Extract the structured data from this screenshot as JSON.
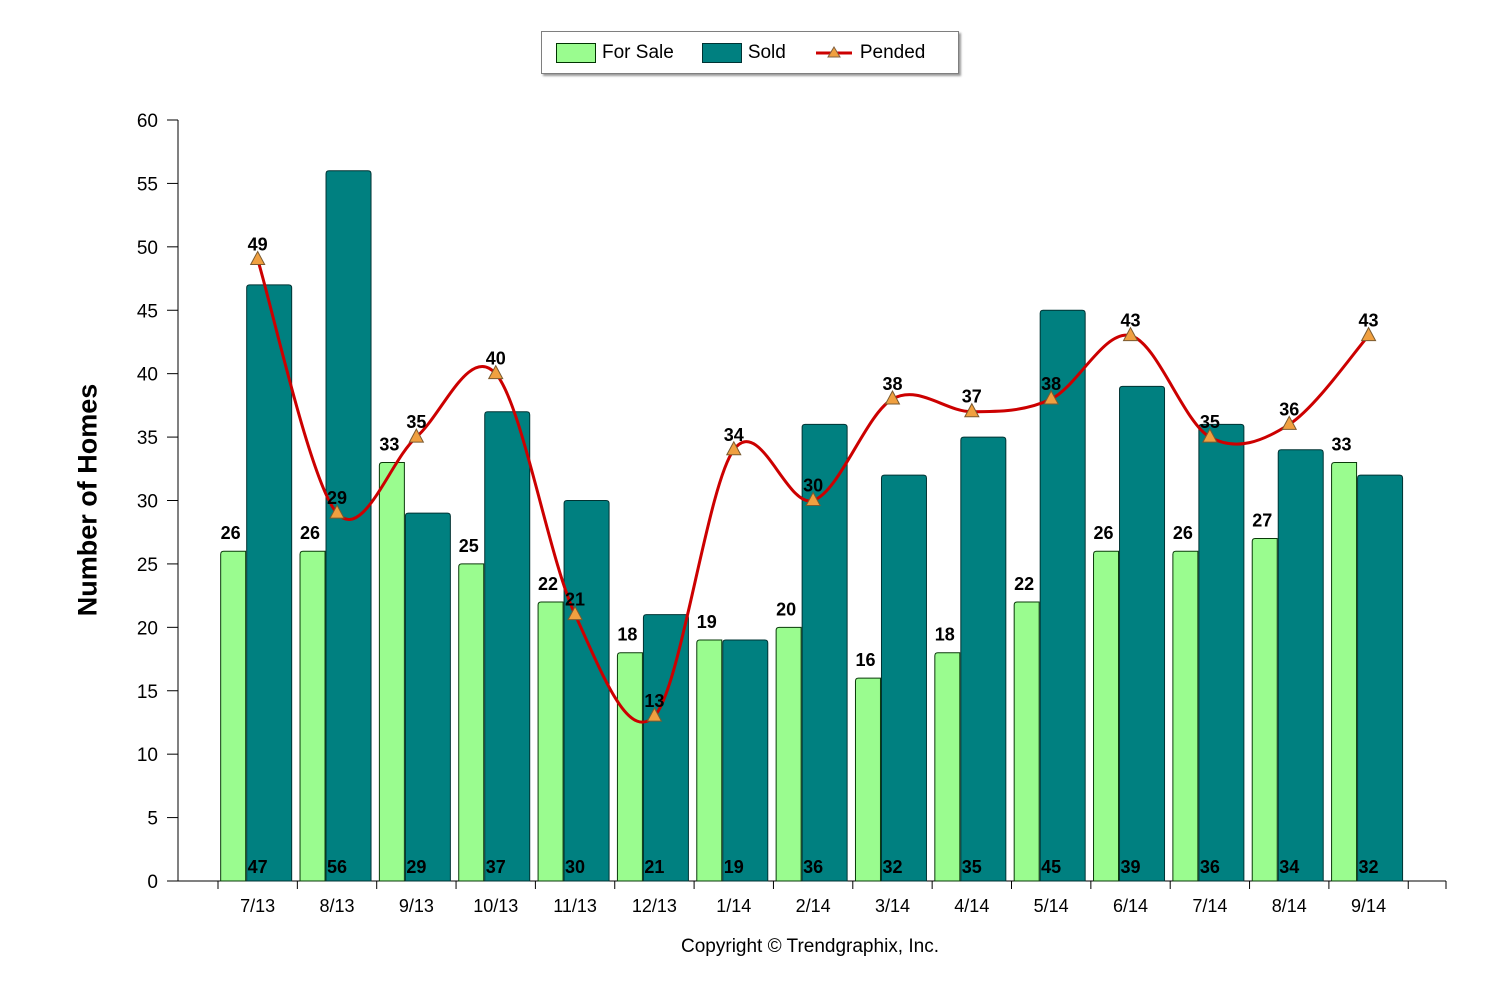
{
  "chart_data": {
    "type": "bar",
    "categories": [
      "7/13",
      "8/13",
      "9/13",
      "10/13",
      "11/13",
      "12/13",
      "1/14",
      "2/14",
      "3/14",
      "4/14",
      "5/14",
      "6/14",
      "7/14",
      "8/14",
      "9/14"
    ],
    "series": [
      {
        "name": "For Sale",
        "type": "bar",
        "values": [
          26,
          26,
          33,
          25,
          22,
          18,
          19,
          20,
          16,
          18,
          22,
          26,
          26,
          27,
          33
        ]
      },
      {
        "name": "Sold",
        "type": "bar",
        "values": [
          47,
          56,
          29,
          37,
          30,
          21,
          19,
          36,
          32,
          35,
          45,
          39,
          36,
          34,
          32
        ]
      },
      {
        "name": "Pended",
        "type": "line",
        "values": [
          49,
          29,
          35,
          40,
          21,
          13,
          34,
          30,
          38,
          37,
          38,
          43,
          35,
          36,
          43
        ]
      }
    ],
    "ylabel": "Number of Homes",
    "xlabel": "",
    "ylim": [
      0,
      60
    ],
    "yticks": [
      0,
      5,
      10,
      15,
      20,
      25,
      30,
      35,
      40,
      45,
      50,
      55,
      60
    ],
    "legend_position": "top-center",
    "grid": false
  },
  "colors": {
    "for_sale": "#9afc8f",
    "sold": "#008080",
    "pended_line": "#cc0000",
    "pended_marker": "#f0a040"
  },
  "legend": {
    "for_sale": "For Sale",
    "sold": "Sold",
    "pended": "Pended"
  },
  "footer": {
    "copyright": "Copyright © Trendgraphix, Inc."
  }
}
